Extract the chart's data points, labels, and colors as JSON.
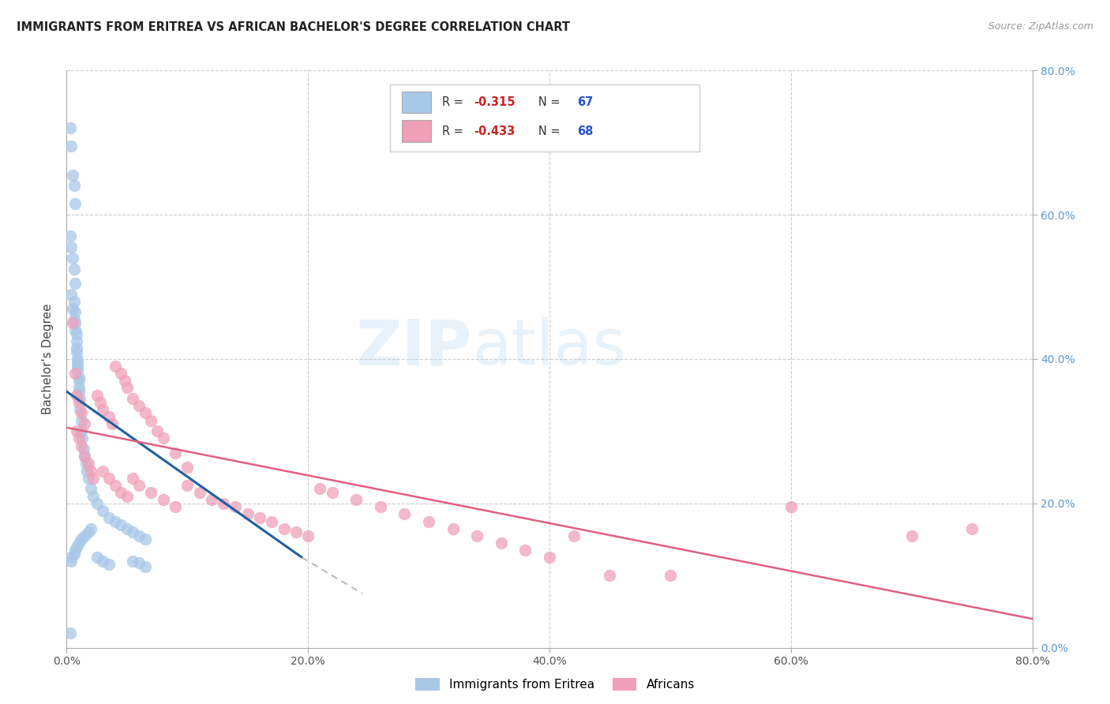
{
  "title": "IMMIGRANTS FROM ERITREA VS AFRICAN BACHELOR'S DEGREE CORRELATION CHART",
  "source": "Source: ZipAtlas.com",
  "ylabel": "Bachelor's Degree",
  "xlim": [
    0.0,
    0.8
  ],
  "ylim": [
    0.0,
    0.8
  ],
  "xticks": [
    0.0,
    0.2,
    0.4,
    0.6,
    0.8
  ],
  "xtick_labels": [
    "0.0%",
    "20.0%",
    "40.0%",
    "60.0%",
    "80.0%"
  ],
  "yticks_right": [
    0.0,
    0.2,
    0.4,
    0.6,
    0.8
  ],
  "ytick_labels_right": [
    "0.0%",
    "20.0%",
    "40.0%",
    "60.0%",
    "80.0%"
  ],
  "grid_color": "#cccccc",
  "background_color": "#ffffff",
  "legend1_label": "Immigrants from Eritrea",
  "legend2_label": "Africans",
  "series1_color": "#a8c8e8",
  "series2_color": "#f0a0b8",
  "line1_color": "#2060a0",
  "line2_color": "#e06080",
  "line1_dash_color": "#bbbbbb",
  "R1": -0.315,
  "N1": 67,
  "R2": -0.433,
  "N2": 68,
  "watermark_zip": "ZIP",
  "watermark_atlas": "atlas",
  "legend_R1_color": "#cc0000",
  "legend_N1_color": "#2060c0",
  "legend_R2_color": "#cc0000",
  "legend_N2_color": "#2060c0",
  "line1_x_start": 0.0,
  "line1_x_end": 0.195,
  "line1_y_start": 0.355,
  "line1_y_end": 0.125,
  "line1_dash_x_start": 0.195,
  "line1_dash_x_end": 0.245,
  "line1_dash_y_start": 0.125,
  "line1_dash_y_end": 0.075,
  "line2_x_start": 0.0,
  "line2_x_end": 0.8,
  "line2_y_start": 0.305,
  "line2_y_end": 0.04,
  "s1_x": [
    0.003,
    0.004,
    0.005,
    0.006,
    0.007,
    0.003,
    0.004,
    0.005,
    0.006,
    0.007,
    0.004,
    0.005,
    0.006,
    0.007,
    0.008,
    0.008,
    0.009,
    0.009,
    0.01,
    0.01,
    0.006,
    0.007,
    0.007,
    0.008,
    0.008,
    0.009,
    0.009,
    0.01,
    0.01,
    0.011,
    0.011,
    0.012,
    0.012,
    0.013,
    0.014,
    0.015,
    0.016,
    0.017,
    0.018,
    0.02,
    0.022,
    0.025,
    0.03,
    0.035,
    0.04,
    0.045,
    0.05,
    0.055,
    0.06,
    0.065,
    0.003,
    0.004,
    0.004,
    0.006,
    0.007,
    0.008,
    0.01,
    0.012,
    0.015,
    0.018,
    0.02,
    0.025,
    0.03,
    0.035,
    0.055,
    0.06,
    0.065
  ],
  "s1_y": [
    0.72,
    0.695,
    0.655,
    0.64,
    0.615,
    0.57,
    0.555,
    0.54,
    0.525,
    0.505,
    0.49,
    0.47,
    0.455,
    0.44,
    0.425,
    0.41,
    0.395,
    0.385,
    0.37,
    0.355,
    0.48,
    0.465,
    0.45,
    0.435,
    0.415,
    0.4,
    0.39,
    0.375,
    0.36,
    0.345,
    0.33,
    0.315,
    0.3,
    0.29,
    0.275,
    0.265,
    0.255,
    0.245,
    0.235,
    0.22,
    0.21,
    0.2,
    0.19,
    0.18,
    0.175,
    0.17,
    0.165,
    0.16,
    0.155,
    0.15,
    0.02,
    0.12,
    0.125,
    0.13,
    0.135,
    0.14,
    0.145,
    0.15,
    0.155,
    0.16,
    0.165,
    0.125,
    0.12,
    0.115,
    0.12,
    0.118,
    0.112
  ],
  "s2_x": [
    0.005,
    0.007,
    0.008,
    0.01,
    0.012,
    0.015,
    0.008,
    0.01,
    0.012,
    0.015,
    0.018,
    0.02,
    0.022,
    0.025,
    0.028,
    0.03,
    0.035,
    0.038,
    0.04,
    0.045,
    0.048,
    0.05,
    0.055,
    0.06,
    0.065,
    0.07,
    0.075,
    0.08,
    0.09,
    0.1,
    0.03,
    0.035,
    0.04,
    0.045,
    0.05,
    0.055,
    0.06,
    0.07,
    0.08,
    0.09,
    0.1,
    0.11,
    0.12,
    0.13,
    0.14,
    0.15,
    0.16,
    0.17,
    0.18,
    0.19,
    0.2,
    0.21,
    0.22,
    0.24,
    0.26,
    0.28,
    0.3,
    0.32,
    0.34,
    0.36,
    0.38,
    0.4,
    0.42,
    0.45,
    0.5,
    0.6,
    0.7,
    0.75
  ],
  "s2_y": [
    0.45,
    0.38,
    0.35,
    0.34,
    0.325,
    0.31,
    0.3,
    0.29,
    0.28,
    0.265,
    0.255,
    0.245,
    0.235,
    0.35,
    0.34,
    0.33,
    0.32,
    0.31,
    0.39,
    0.38,
    0.37,
    0.36,
    0.345,
    0.335,
    0.325,
    0.315,
    0.3,
    0.29,
    0.27,
    0.25,
    0.245,
    0.235,
    0.225,
    0.215,
    0.21,
    0.235,
    0.225,
    0.215,
    0.205,
    0.195,
    0.225,
    0.215,
    0.205,
    0.2,
    0.195,
    0.185,
    0.18,
    0.175,
    0.165,
    0.16,
    0.155,
    0.22,
    0.215,
    0.205,
    0.195,
    0.185,
    0.175,
    0.165,
    0.155,
    0.145,
    0.135,
    0.125,
    0.155,
    0.1,
    0.1,
    0.195,
    0.155,
    0.165
  ]
}
